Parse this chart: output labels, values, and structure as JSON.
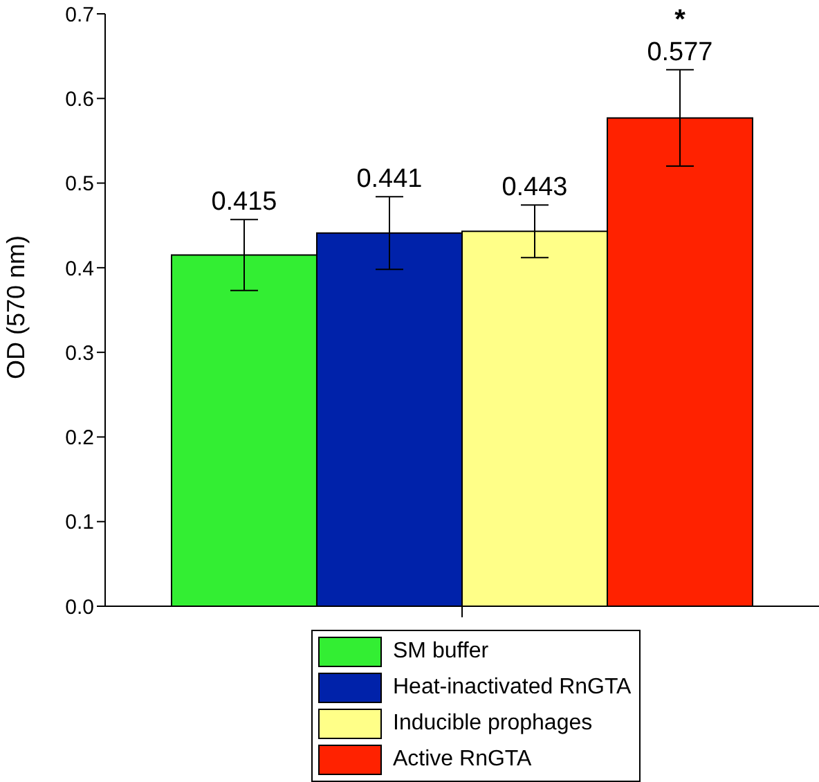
{
  "chart_data": {
    "type": "bar",
    "ylabel": "OD (570 nm)",
    "categories": [
      null
    ],
    "series": [
      {
        "name": "SM buffer",
        "color": "#33ee33",
        "values": [
          0.415
        ],
        "errors": [
          0.042
        ]
      },
      {
        "name": "Heat-inactivated RnGTA",
        "color": "#0022aa",
        "values": [
          0.441
        ],
        "errors": [
          0.043
        ]
      },
      {
        "name": "Inducible prophages",
        "color": "#ffff88",
        "values": [
          0.443
        ],
        "errors": [
          0.031
        ]
      },
      {
        "name": "Active RnGTA",
        "color": "#ff2200",
        "values": [
          0.577
        ],
        "errors": [
          0.057
        ]
      }
    ],
    "ylim": [
      0,
      0.7
    ],
    "yticks": [
      {
        "value": 0,
        "label": "0.0"
      },
      {
        "value": 0.1,
        "label": "0.1"
      },
      {
        "value": 0.2,
        "label": "0.2"
      },
      {
        "value": 0.3,
        "label": "0.3"
      },
      {
        "value": 0.4,
        "label": "0.4"
      },
      {
        "value": 0.5,
        "label": "0.5"
      },
      {
        "value": 0.6,
        "label": "0.6"
      },
      {
        "value": 0.7,
        "label": "0.7"
      }
    ],
    "data_labels": true,
    "annotations": [
      "*"
    ],
    "legend": "bottom",
    "grid": false
  }
}
